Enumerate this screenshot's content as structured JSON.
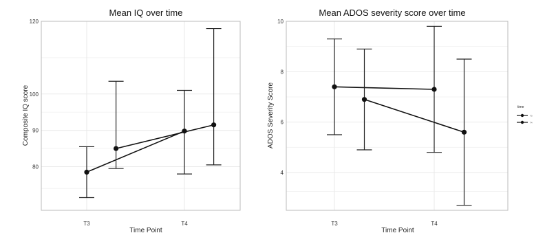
{
  "chart_data": [
    {
      "type": "line",
      "title": "Mean IQ over time",
      "xlabel": "Time Point",
      "ylabel": "Composite IQ score",
      "categories": [
        "T3",
        "T4"
      ],
      "ylim": [
        68,
        120
      ],
      "yticks": [
        80,
        90,
        100,
        120
      ],
      "grid": true,
      "series": [
        {
          "points": [
            {
              "x": 0,
              "y": 78.5,
              "ci": [
                71.5,
                85.5
              ]
            },
            {
              "x": 1,
              "y": 89.8,
              "ci": [
                78.0,
                101.0
              ]
            }
          ]
        },
        {
          "points": [
            {
              "x": 0.3,
              "y": 85.0,
              "ci": [
                79.5,
                103.5
              ]
            },
            {
              "x": 1.3,
              "y": 91.5,
              "ci": [
                80.5,
                118.0
              ]
            }
          ]
        }
      ]
    },
    {
      "type": "line",
      "title": "Mean ADOS severity score over time",
      "xlabel": "Time Point",
      "ylabel": "ADOS Severity Score",
      "categories": [
        "T3",
        "T4"
      ],
      "ylim": [
        2.5,
        10
      ],
      "yticks": [
        4,
        6,
        8,
        10
      ],
      "grid": true,
      "series": [
        {
          "points": [
            {
              "x": 0,
              "y": 7.4,
              "ci": [
                5.5,
                9.3
              ]
            },
            {
              "x": 1,
              "y": 7.3,
              "ci": [
                4.8,
                9.8
              ]
            }
          ]
        },
        {
          "points": [
            {
              "x": 0.3,
              "y": 6.9,
              "ci": [
                4.9,
                8.9
              ]
            },
            {
              "x": 1.3,
              "y": 5.6,
              "ci": [
                2.7,
                8.5
              ]
            }
          ]
        }
      ]
    }
  ],
  "legend": {
    "title": "time",
    "entries": [
      "T3",
      "T4"
    ],
    "placement": "right"
  }
}
